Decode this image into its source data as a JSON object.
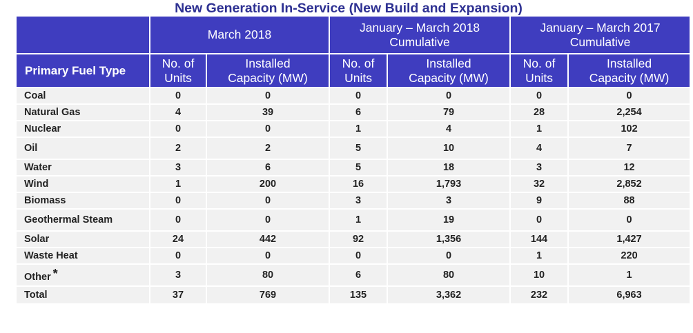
{
  "title": "New Generation In-Service (New Build and Expansion)",
  "header": {
    "groups": [
      {
        "label_line1": "March 2018",
        "label_line2": ""
      },
      {
        "label_line1": "January – March 2018",
        "label_line2": "Cumulative"
      },
      {
        "label_line1": "January – March 2017",
        "label_line2": "Cumulative"
      }
    ],
    "fuel_type": "Primary Fuel Type",
    "units_line1": "No. of",
    "units_line2": "Units",
    "capacity_line1": "Installed",
    "capacity_line2": "Capacity (MW)"
  },
  "rows": [
    {
      "fuel": "Coal",
      "m18_units": "0",
      "m18_mw": "0",
      "jm18_units": "0",
      "jm18_mw": "0",
      "jm17_units": "0",
      "jm17_mw": "0"
    },
    {
      "fuel": "Natural Gas",
      "m18_units": "4",
      "m18_mw": "39",
      "jm18_units": "6",
      "jm18_mw": "79",
      "jm17_units": "28",
      "jm17_mw": "2,254"
    },
    {
      "fuel": "Nuclear",
      "m18_units": "0",
      "m18_mw": "0",
      "jm18_units": "1",
      "jm18_mw": "4",
      "jm17_units": "1",
      "jm17_mw": "102"
    },
    {
      "fuel": "Oil",
      "m18_units": "2",
      "m18_mw": "2",
      "jm18_units": "5",
      "jm18_mw": "10",
      "jm17_units": "4",
      "jm17_mw": "7"
    },
    {
      "fuel": "Water",
      "m18_units": "3",
      "m18_mw": "6",
      "jm18_units": "5",
      "jm18_mw": "18",
      "jm17_units": "3",
      "jm17_mw": "12"
    },
    {
      "fuel": "Wind",
      "m18_units": "1",
      "m18_mw": "200",
      "jm18_units": "16",
      "jm18_mw": "1,793",
      "jm17_units": "32",
      "jm17_mw": "2,852"
    },
    {
      "fuel": "Biomass",
      "m18_units": "0",
      "m18_mw": "0",
      "jm18_units": "3",
      "jm18_mw": "3",
      "jm17_units": "9",
      "jm17_mw": "88"
    },
    {
      "fuel": "Geothermal Steam",
      "m18_units": "0",
      "m18_mw": "0",
      "jm18_units": "1",
      "jm18_mw": "19",
      "jm17_units": "0",
      "jm17_mw": "0"
    },
    {
      "fuel": "Solar",
      "m18_units": "24",
      "m18_mw": "442",
      "jm18_units": "92",
      "jm18_mw": "1,356",
      "jm17_units": "144",
      "jm17_mw": "1,427"
    },
    {
      "fuel": "Waste Heat",
      "m18_units": "0",
      "m18_mw": "0",
      "jm18_units": "0",
      "jm18_mw": "0",
      "jm17_units": "1",
      "jm17_mw": "220"
    },
    {
      "fuel": "Other",
      "footnote_mark": "*",
      "m18_units": "3",
      "m18_mw": "80",
      "jm18_units": "6",
      "jm18_mw": "80",
      "jm17_units": "10",
      "jm17_mw": "1"
    },
    {
      "fuel": "Total",
      "m18_units": "37",
      "m18_mw": "769",
      "jm18_units": "135",
      "jm18_mw": "3,362",
      "jm17_units": "232",
      "jm17_mw": "6,963"
    }
  ]
}
